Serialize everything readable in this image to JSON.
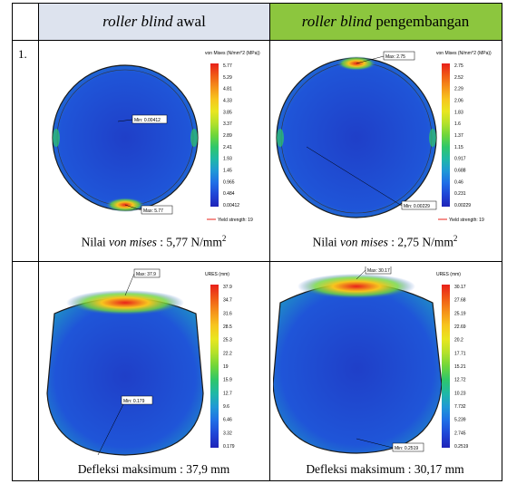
{
  "table": {
    "header": [
      {
        "italic": "roller blind",
        "text": "awal"
      },
      {
        "italic": "roller blind",
        "text": "pengembangan"
      }
    ],
    "rows": [
      {
        "number": "1.",
        "cells": [
          {
            "legend_title": "von Mises (N/mm^2 (MPa))",
            "legend_values": [
              "5.77",
              "5.29",
              "4.81",
              "4.33",
              "3.85",
              "3.37",
              "2.89",
              "2.41",
              "1.93",
              "1.45",
              "0.965",
              "0.484",
              "0.00412"
            ],
            "max_label": "Max: 5.77",
            "min_label": "Min: 0.00412",
            "yield": "Yield strength: 19",
            "caption": {
              "before": "Nilai",
              "italic": "von mises",
              "after": ": 5,77 N/mm",
              "sup": "2"
            }
          },
          {
            "legend_title": "von Mises (N/mm^2 (MPa))",
            "legend_values": [
              "2.75",
              "2.52",
              "2.29",
              "2.06",
              "1.83",
              "1.6",
              "1.37",
              "1.15",
              "0.917",
              "0.688",
              "0.46",
              "0.231",
              "0.00229"
            ],
            "max_label": "Max: 2.75",
            "min_label": "Min: 0.00229",
            "yield": "Yield strength: 19",
            "caption": {
              "before": "Nilai",
              "italic": "von mises",
              "after": ": 2,75 N/mm",
              "sup": "2"
            }
          }
        ]
      },
      {
        "cells": [
          {
            "legend_title": "URES (mm)",
            "legend_values": [
              "37.9",
              "34.7",
              "31.6",
              "28.5",
              "25.3",
              "22.2",
              "19",
              "15.9",
              "12.7",
              "9.6",
              "6.46",
              "3.32",
              "0.179"
            ],
            "max_label": "Max: 37.9",
            "min_label": "Min: 0.179",
            "caption": {
              "text": "Defleksi maksimum : 37,9 mm"
            }
          },
          {
            "legend_title": "URES (mm)",
            "legend_values": [
              "30.17",
              "27.68",
              "25.19",
              "22.69",
              "20.2",
              "17.71",
              "15.21",
              "12.72",
              "10.23",
              "7.732",
              "5.239",
              "2.745",
              "0.2519"
            ],
            "max_label": "Max: 30.17",
            "min_label": "Min: 0.2519",
            "caption": {
              "text": "Defleksi maksimum : 30,17 mm"
            }
          }
        ]
      }
    ]
  }
}
